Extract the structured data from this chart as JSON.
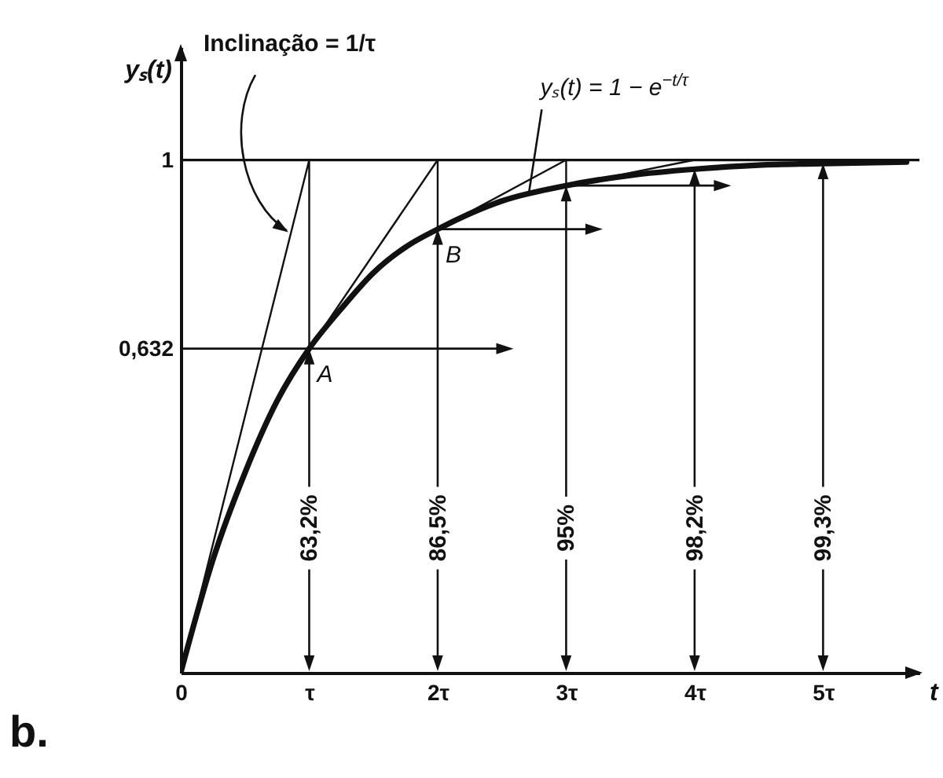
{
  "chart_data": {
    "type": "line",
    "xlabel": "t",
    "ylabel": "yₛ(t)",
    "series": [
      {
        "color": "#111111",
        "x": [
          0,
          0.25,
          0.5,
          0.75,
          1,
          1.25,
          1.5,
          1.75,
          2,
          2.5,
          3,
          3.5,
          4,
          4.5,
          5,
          5.65
        ],
        "values": [
          0,
          0.22,
          0.39,
          0.53,
          0.632,
          0.71,
          0.78,
          0.83,
          0.865,
          0.92,
          0.95,
          0.97,
          0.982,
          0.99,
          0.993,
          0.996
        ]
      },
      {
        "color": "#111111",
        "x": [
          0,
          1,
          1,
          2,
          2,
          3,
          3,
          4
        ],
        "values": [
          0,
          1,
          0.632,
          1,
          0.865,
          1,
          0.95,
          1
        ]
      }
    ],
    "xlim": [
      0,
      5.75
    ],
    "xticks": [
      0,
      {
        "value": 1,
        "label": "τ"
      },
      {
        "value": 2,
        "label": "2τ"
      },
      {
        "value": 3,
        "label": "3τ"
      },
      {
        "value": 4,
        "label": "4τ"
      },
      {
        "value": 5,
        "label": "5τ"
      }
    ],
    "ylim": [
      0,
      1.22
    ],
    "yticks": [
      {
        "value": 0.632,
        "label": "0,632"
      },
      1
    ],
    "ref_lines": [
      {
        "axis": "y",
        "value": 1,
        "color": "#111111"
      }
    ],
    "annotations": [
      {
        "text": "Inclinação = 1/τ",
        "x": 0.85,
        "y": 0.85
      },
      {
        "text": "yₛ(t) = 1 − e$^{−t/τ}$",
        "x": 2.7,
        "y": 0.93
      },
      {
        "text": "A",
        "x": 1,
        "y": 0.632
      },
      {
        "text": "B",
        "x": 2,
        "y": 0.865
      },
      {
        "text": "63,2%",
        "x": 1,
        "y": 0.632
      },
      {
        "text": "86,5%",
        "x": 2,
        "y": 0.865
      },
      {
        "text": "95%",
        "x": 3,
        "y": 0.95
      },
      {
        "text": "98,2%",
        "x": 4,
        "y": 0.982
      },
      {
        "text": "99,3%",
        "x": 5,
        "y": 0.993
      },
      "b."
    ]
  }
}
